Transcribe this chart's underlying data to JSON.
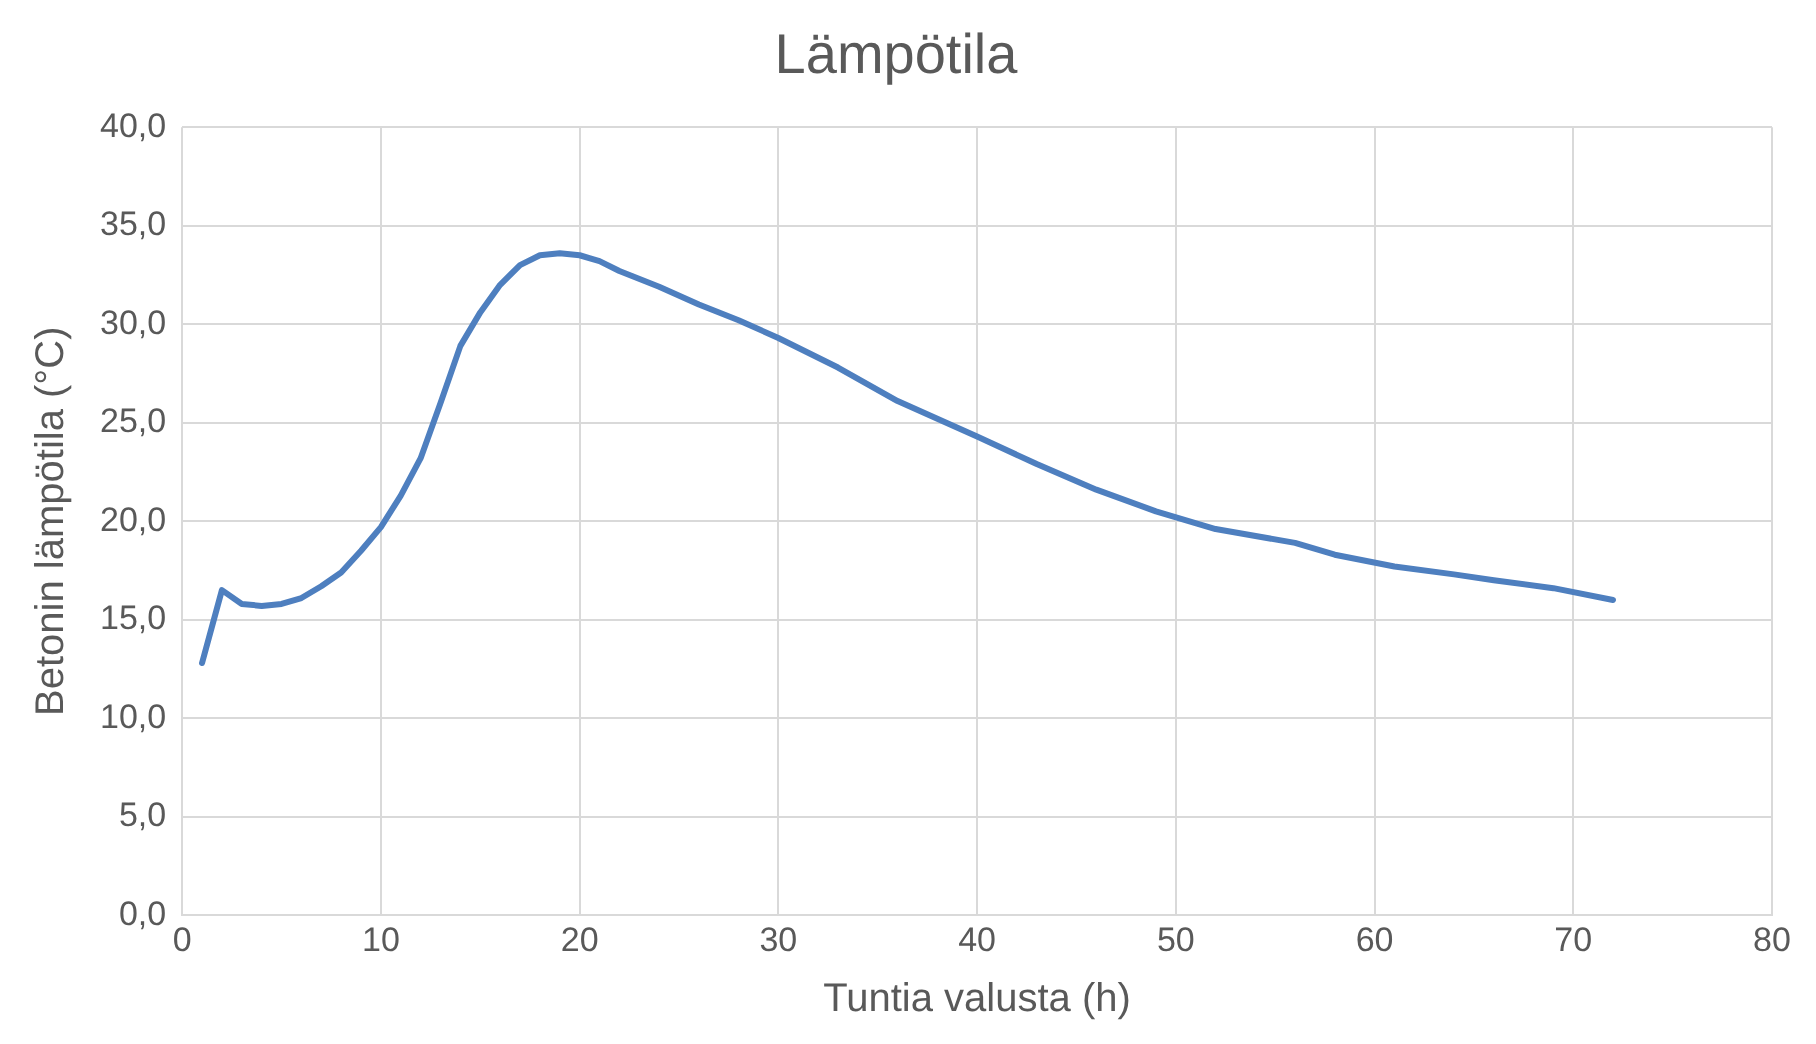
{
  "chart_data": {
    "type": "line",
    "title": "Lämpötila",
    "xlabel": "Tuntia valusta (h)",
    "ylabel": "Betonin lämpötila (°C)",
    "x": [
      1,
      2,
      3,
      4,
      5,
      6,
      7,
      8,
      9,
      10,
      11,
      12,
      13,
      14,
      15,
      16,
      17,
      18,
      19,
      20,
      21,
      22,
      24,
      26,
      28,
      30,
      33,
      36,
      40,
      43,
      46,
      49,
      52,
      56,
      58,
      61,
      64,
      66,
      69,
      72
    ],
    "series": [
      {
        "color": "#4e7fbf",
        "values": [
          12.8,
          16.5,
          15.8,
          15.7,
          15.8,
          16.1,
          16.7,
          17.4,
          18.5,
          19.7,
          21.3,
          23.2,
          26.0,
          28.9,
          30.6,
          32.0,
          33.0,
          33.5,
          33.6,
          33.5,
          33.2,
          32.7,
          31.9,
          31.0,
          30.2,
          29.3,
          27.8,
          26.1,
          24.3,
          22.9,
          21.6,
          20.5,
          19.6,
          18.9,
          18.3,
          17.7,
          17.3,
          17.0,
          16.6,
          16.0
        ]
      }
    ],
    "xlim": [
      0,
      80
    ],
    "xticks": [
      0,
      10,
      20,
      30,
      40,
      50,
      60,
      70,
      80
    ],
    "ylim": [
      0,
      40
    ],
    "yticks": [
      {
        "value": 0,
        "label": "0,0"
      },
      {
        "value": 5,
        "label": "5,0"
      },
      {
        "value": 10,
        "label": "10,0"
      },
      {
        "value": 15,
        "label": "15,0"
      },
      {
        "value": 20,
        "label": "20,0"
      },
      {
        "value": 25,
        "label": "25,0"
      },
      {
        "value": 30,
        "label": "30,0"
      },
      {
        "value": 35,
        "label": "35,0"
      },
      {
        "value": 40,
        "label": "40,0"
      }
    ],
    "grid": true,
    "legend": false,
    "marker": "none",
    "line_style": "solid"
  }
}
